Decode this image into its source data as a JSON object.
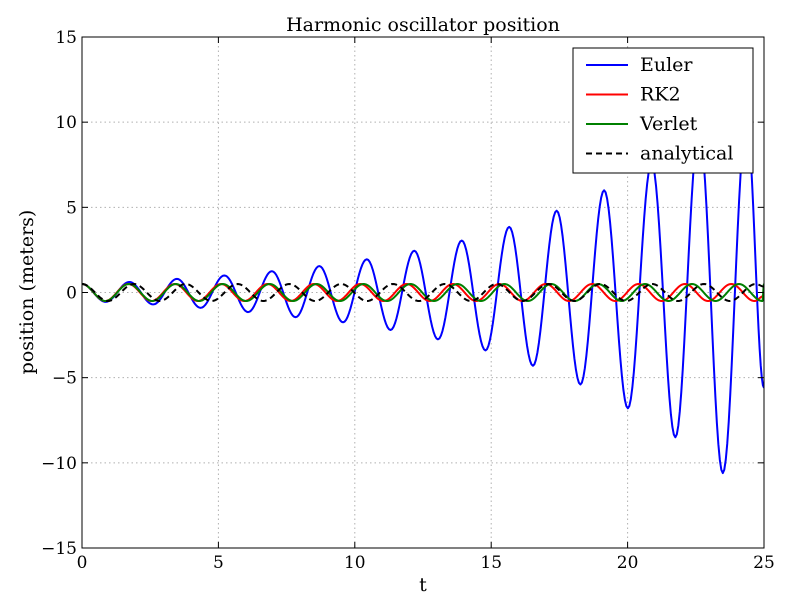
{
  "chart_data": {
    "type": "line",
    "title": "Harmonic oscillator position",
    "xlabel": "t",
    "ylabel": "position (meters)",
    "xlim": [
      0,
      25
    ],
    "ylim": [
      -15,
      15
    ],
    "xticks": [
      0,
      5,
      10,
      15,
      20,
      25
    ],
    "xtick_labels": [
      "0",
      "5",
      "10",
      "15",
      "20",
      "25"
    ],
    "yticks": [
      -15,
      -10,
      -5,
      0,
      5,
      10,
      15
    ],
    "ytick_labels": [
      "−15",
      "−10",
      "−5",
      "0",
      "5",
      "10",
      "15"
    ],
    "grid": true,
    "legend_position": "top-right",
    "series": [
      {
        "name": "Euler",
        "color": "#0000ff",
        "style": "solid",
        "x": [
          0,
          0.87,
          1.74,
          2.61,
          3.48,
          4.35,
          5.22,
          6.09,
          6.96,
          7.83,
          8.7,
          9.57,
          10.44,
          11.31,
          12.18,
          13.05,
          13.92,
          14.79,
          15.66,
          16.53,
          17.4,
          18.27,
          19.14,
          20.01,
          20.88,
          21.75,
          22.62,
          23.49,
          24.36,
          25.0
        ],
        "y": [
          0.5,
          -0.55,
          0.62,
          -0.7,
          0.8,
          -0.9,
          1.0,
          -1.15,
          1.25,
          -1.45,
          1.55,
          -1.75,
          1.95,
          -2.2,
          2.45,
          -2.75,
          3.05,
          -3.4,
          3.85,
          -4.3,
          4.8,
          -5.4,
          6.0,
          -6.8,
          7.6,
          -8.5,
          9.5,
          -10.6,
          10.0,
          -5.6
        ]
      },
      {
        "name": "RK2",
        "color": "#ff0000",
        "style": "solid",
        "x": [
          0,
          0.85,
          1.7,
          2.55,
          3.4,
          4.25,
          5.1,
          5.95,
          6.8,
          7.65,
          8.5,
          9.35,
          10.2,
          11.05,
          11.9,
          12.75,
          13.6,
          14.45,
          15.3,
          16.15,
          17.0,
          17.85,
          18.7,
          19.55,
          20.4,
          21.25,
          22.1,
          22.95,
          23.8,
          24.65,
          25.0
        ],
        "y": [
          0.5,
          -0.5,
          0.5,
          -0.5,
          0.5,
          -0.5,
          0.5,
          -0.5,
          0.5,
          -0.5,
          0.5,
          -0.5,
          0.5,
          -0.5,
          0.5,
          -0.5,
          0.5,
          -0.5,
          0.5,
          -0.5,
          0.5,
          -0.5,
          0.5,
          -0.5,
          0.5,
          -0.5,
          0.5,
          -0.5,
          0.5,
          -0.5,
          -0.2
        ]
      },
      {
        "name": "Verlet",
        "color": "#008000",
        "style": "solid",
        "x": [
          0,
          0.86,
          1.72,
          2.58,
          3.44,
          4.3,
          5.16,
          6.02,
          6.88,
          7.74,
          8.6,
          9.46,
          10.32,
          11.18,
          12.04,
          12.9,
          13.76,
          14.62,
          15.48,
          16.34,
          17.2,
          18.06,
          18.92,
          19.78,
          20.64,
          21.5,
          22.36,
          23.22,
          24.08,
          24.94,
          25.0
        ],
        "y": [
          0.5,
          -0.5,
          0.5,
          -0.5,
          0.5,
          -0.5,
          0.5,
          -0.5,
          0.5,
          -0.5,
          0.5,
          -0.5,
          0.5,
          -0.5,
          0.5,
          -0.5,
          0.5,
          -0.5,
          0.5,
          -0.5,
          0.5,
          -0.5,
          0.5,
          -0.5,
          0.5,
          -0.5,
          0.5,
          -0.5,
          0.5,
          -0.5,
          0.5
        ]
      },
      {
        "name": "analytical",
        "color": "#000000",
        "style": "dashed",
        "x": [
          0,
          0.95,
          1.9,
          2.85,
          3.8,
          4.75,
          5.7,
          6.65,
          7.6,
          8.55,
          9.5,
          10.45,
          11.4,
          12.35,
          13.3,
          14.25,
          15.2,
          16.15,
          17.1,
          18.05,
          19.0,
          19.95,
          20.9,
          21.85,
          22.8,
          23.75,
          24.7,
          25.0
        ],
        "y": [
          0.5,
          -0.5,
          0.5,
          -0.5,
          0.5,
          -0.5,
          0.5,
          -0.5,
          0.5,
          -0.5,
          0.5,
          -0.5,
          0.5,
          -0.5,
          0.5,
          -0.5,
          0.5,
          -0.5,
          0.5,
          -0.5,
          0.5,
          -0.5,
          0.5,
          -0.5,
          0.5,
          -0.5,
          0.5,
          0.35
        ]
      }
    ]
  }
}
